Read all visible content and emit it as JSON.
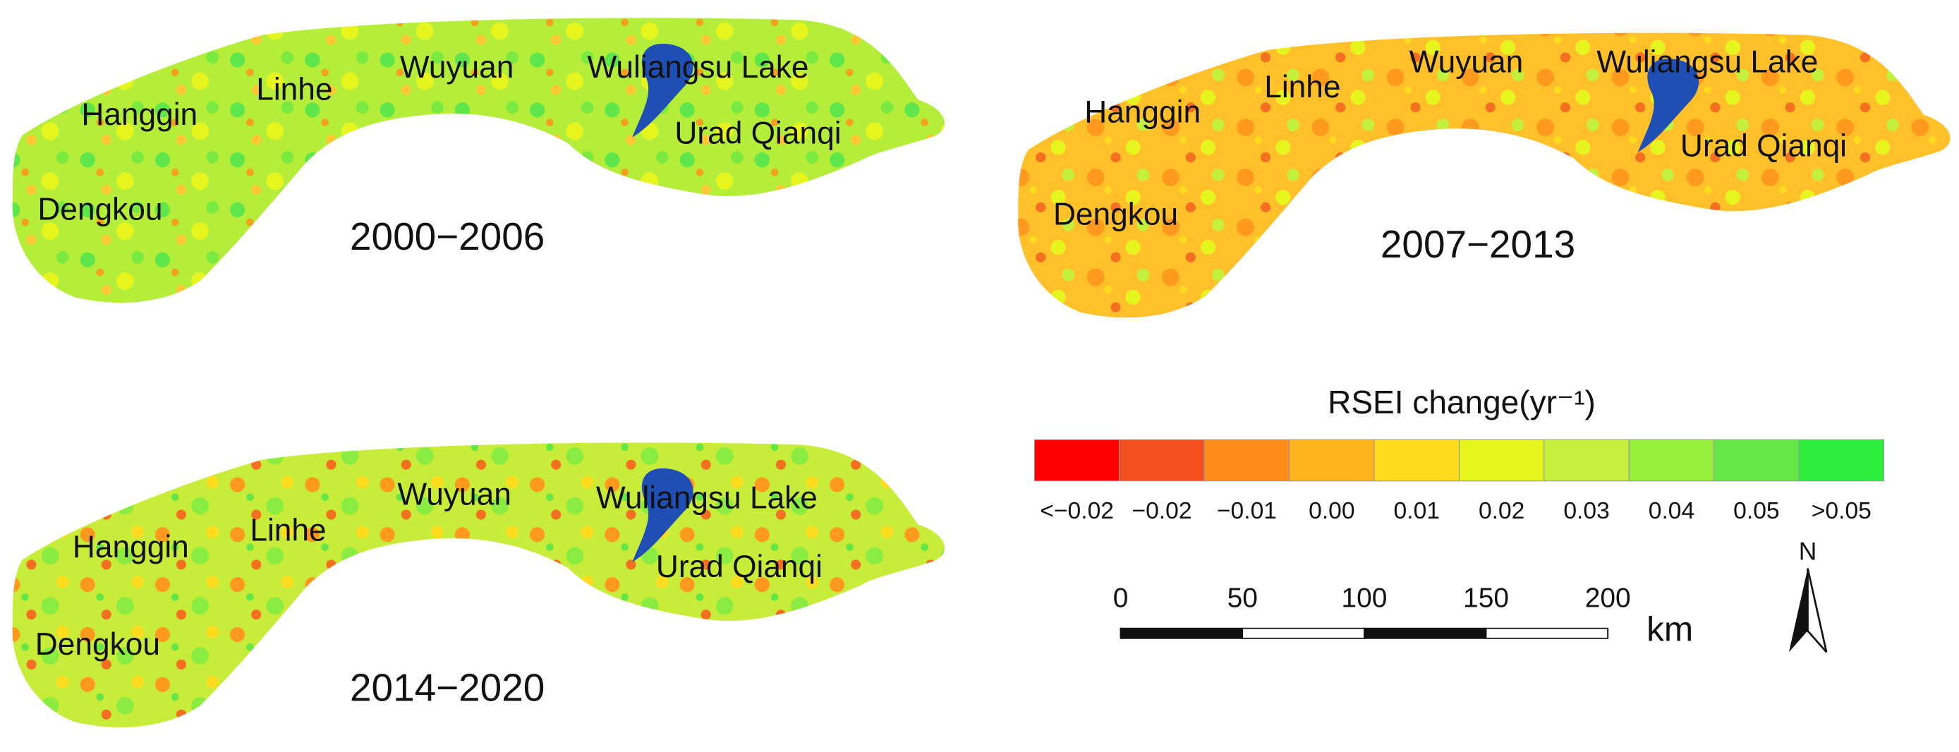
{
  "panels": [
    {
      "period": "2000−2006",
      "places": [
        "Hanggin",
        "Linhe",
        "Wuyuan",
        "Wuliangsu Lake",
        "Urad Qianqi",
        "Dengkou"
      ]
    },
    {
      "period": "2007−2013",
      "places": [
        "Hanggin",
        "Linhe",
        "Wuyuan",
        "Wuliangsu Lake",
        "Urad Qianqi",
        "Dengkou"
      ]
    },
    {
      "period": "2014−2020",
      "places": [
        "Hanggin",
        "Linhe",
        "Wuyuan",
        "Wuliangsu Lake",
        "Urad Qianqi",
        "Dengkou"
      ]
    }
  ],
  "legend": {
    "title": "RSEI change(yr⁻¹)",
    "labels": [
      "<−0.02",
      "−0.02",
      "−0.01",
      "0.00",
      "0.01",
      "0.02",
      "0.03",
      "0.04",
      "0.05",
      ">0.05"
    ],
    "colors": [
      "#ff0000",
      "#f4501e",
      "#ff8c1a",
      "#ffb41e",
      "#ffdc1e",
      "#e6f51e",
      "#c3f03c",
      "#96f03c",
      "#64e646",
      "#2ded3c"
    ]
  },
  "scale_bar": {
    "ticks": [
      0,
      50,
      100,
      150,
      200
    ],
    "unit": "km"
  },
  "north_arrow": "N"
}
